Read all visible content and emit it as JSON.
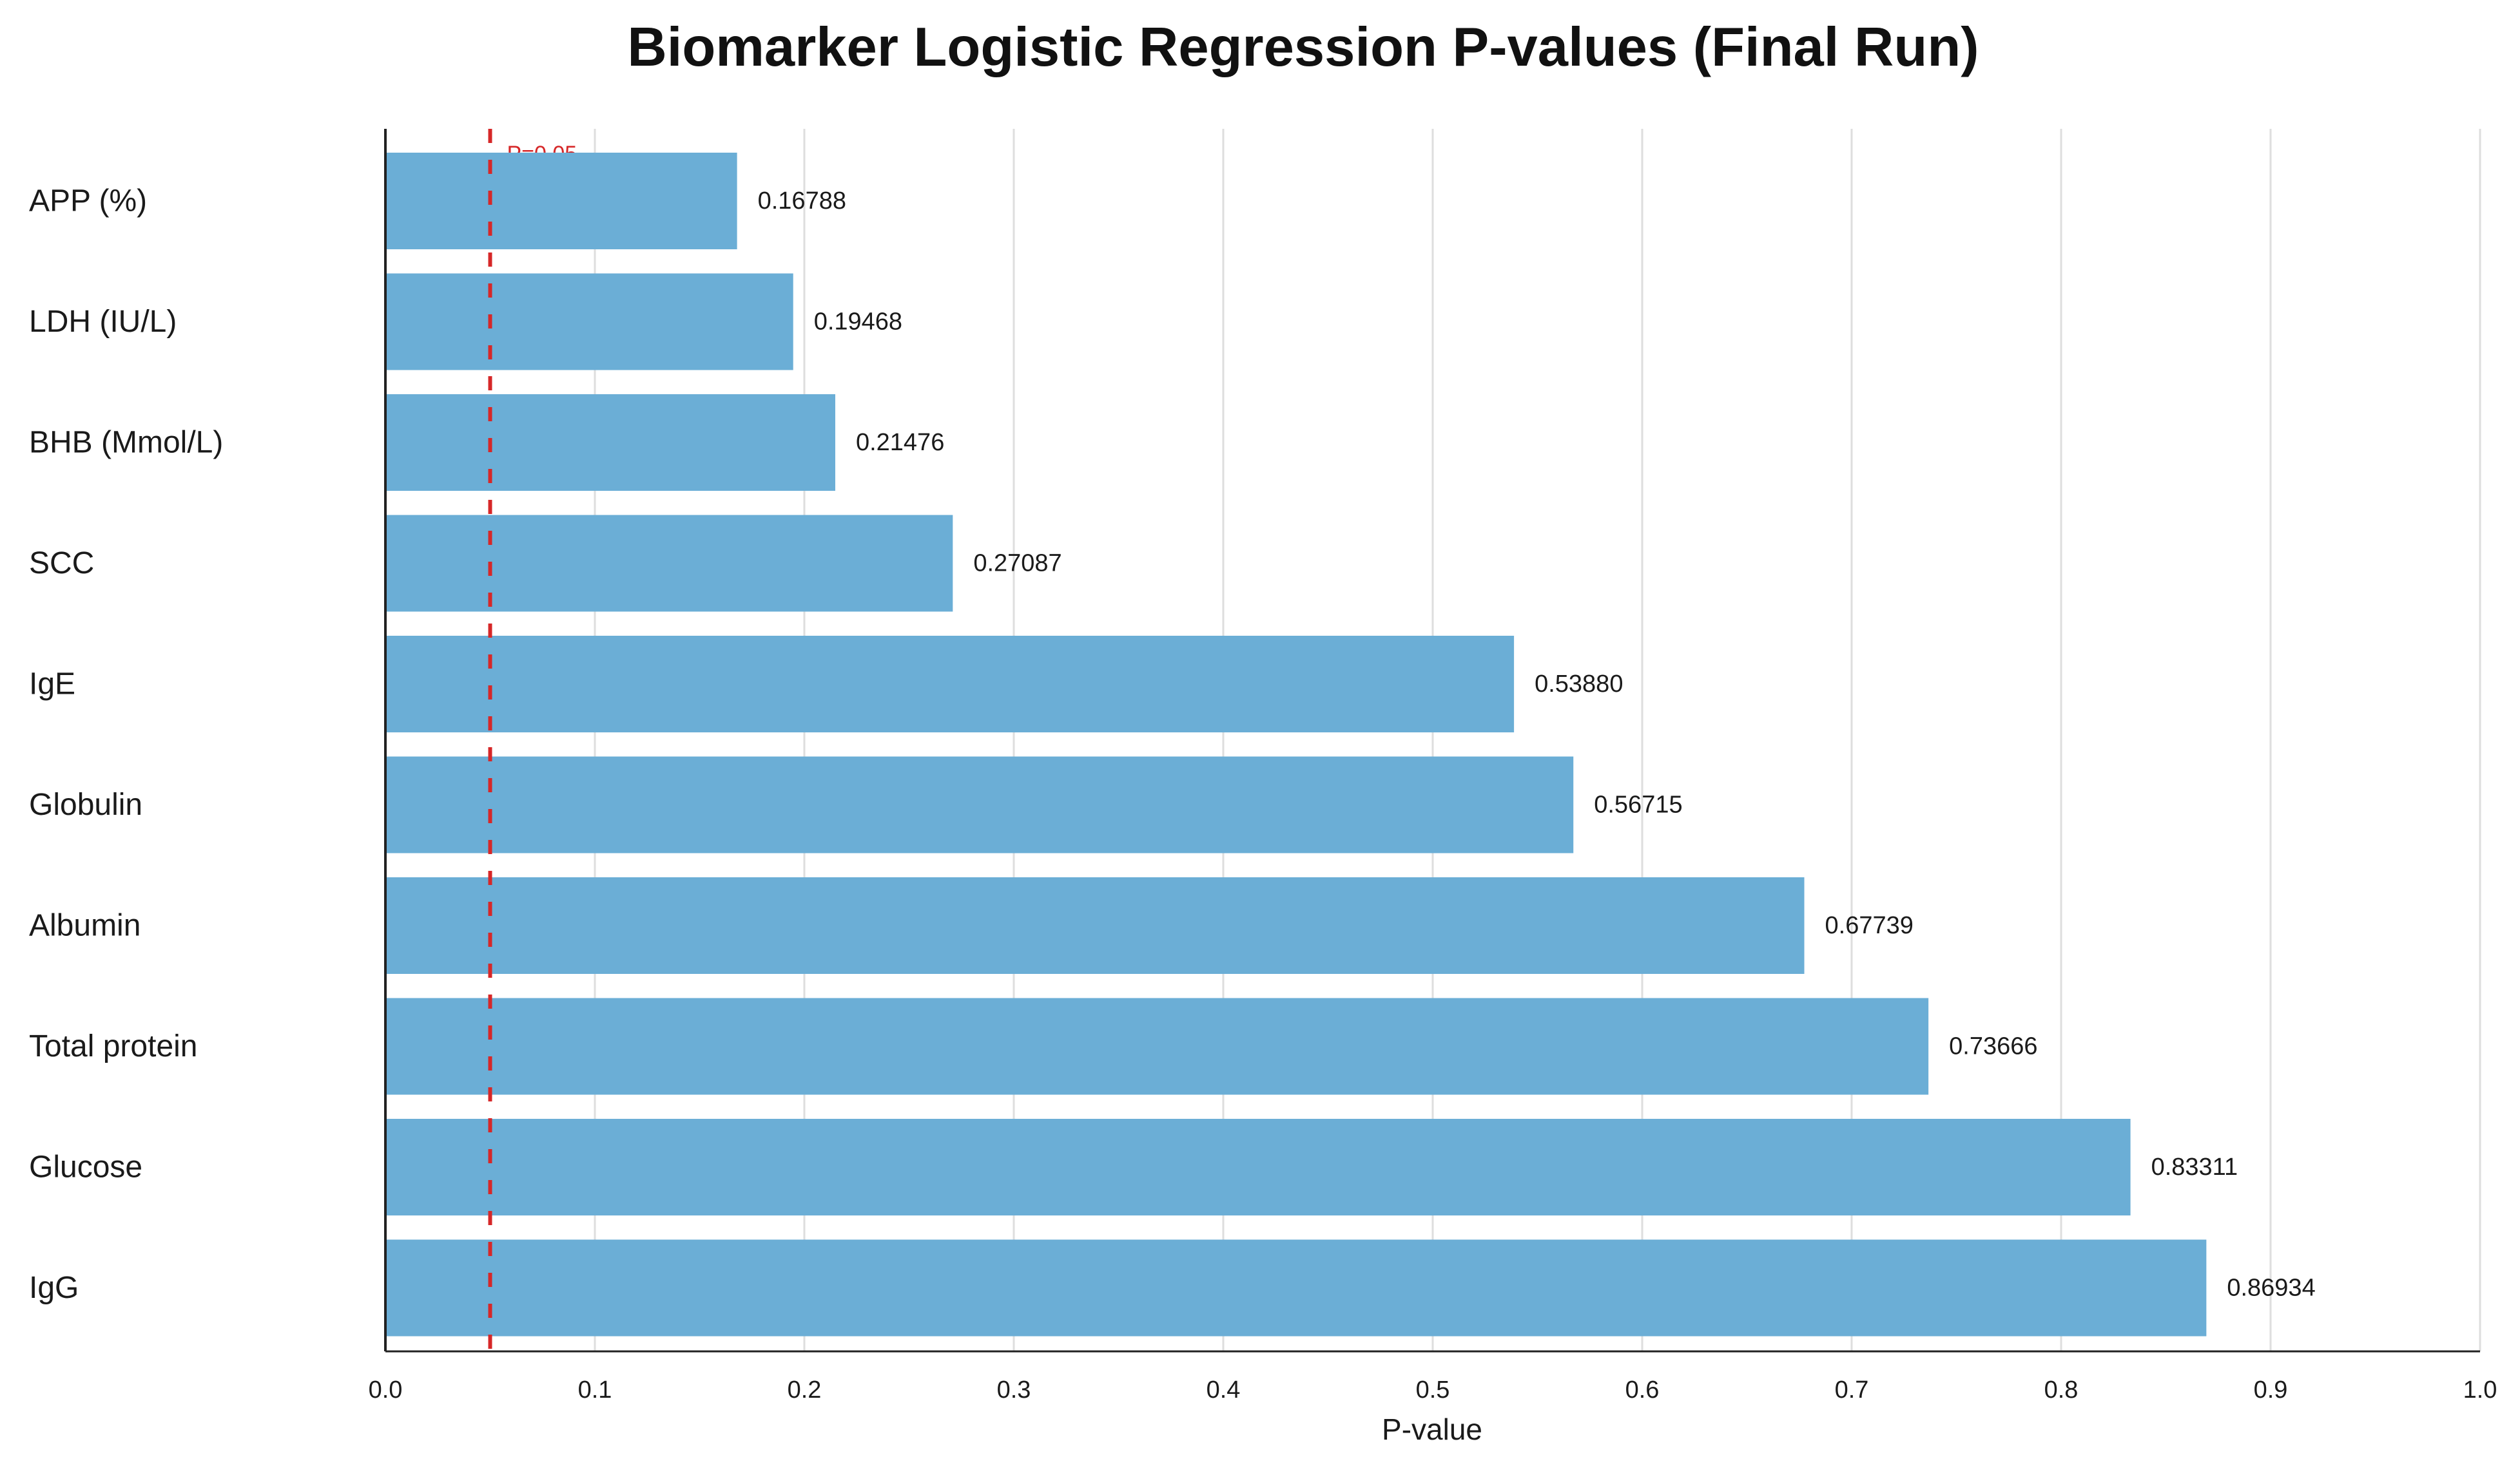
{
  "chart_data": {
    "type": "bar",
    "orientation": "horizontal",
    "title": "Biomarker Logistic Regression P-values (Final Run)",
    "xlabel": "P-value",
    "ylabel": "",
    "categories": [
      "APP (%)",
      "LDH (IU/L)",
      "BHB (Mmol/L)",
      "SCC",
      "IgE",
      "Globulin",
      "Albumin",
      "Total protein",
      "Glucose",
      "IgG"
    ],
    "values": [
      0.16788,
      0.19468,
      0.21476,
      0.27087,
      0.5388,
      0.56715,
      0.67739,
      0.73666,
      0.83311,
      0.86934
    ],
    "value_labels": [
      "0.16788",
      "0.19468",
      "0.21476",
      "0.27087",
      "0.53880",
      "0.56715",
      "0.67739",
      "0.73666",
      "0.83311",
      "0.86934"
    ],
    "xlim": [
      0.0,
      1.0
    ],
    "xticks": [
      0.0,
      0.1,
      0.2,
      0.3,
      0.4,
      0.5,
      0.6,
      0.7,
      0.8,
      0.9,
      1.0
    ],
    "xtick_labels": [
      "0.0",
      "0.1",
      "0.2",
      "0.3",
      "0.4",
      "0.5",
      "0.6",
      "0.7",
      "0.8",
      "0.9",
      "1.0"
    ],
    "grid": "vertical",
    "reference_line": {
      "value": 0.05,
      "label": "P=0.05",
      "style": "dashed",
      "color": "#d62728"
    },
    "bar_color": "#6baed6",
    "grid_color": "#dedede"
  }
}
